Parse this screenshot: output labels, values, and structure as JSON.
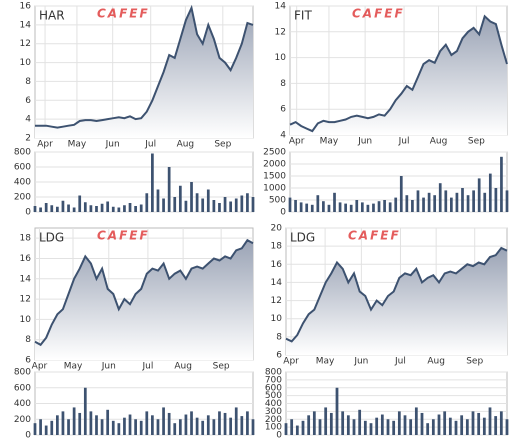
{
  "chart_data": [
    {
      "type": "area",
      "title": "HAR",
      "watermark": "CAFEF",
      "color": "#3d5270",
      "values": [
        3.3,
        3.3,
        3.3,
        3.2,
        3.1,
        3.2,
        3.3,
        3.4,
        3.8,
        3.9,
        3.9,
        3.8,
        3.9,
        4.0,
        4.1,
        4.2,
        4.1,
        4.3,
        4.0,
        4.1,
        4.8,
        6.0,
        7.5,
        9.0,
        10.8,
        10.5,
        12.5,
        14.5,
        15.8,
        13.0,
        12.0,
        14.0,
        12.5,
        10.5,
        10.0,
        9.2,
        10.5,
        12.0,
        14.2,
        14.0
      ],
      "xlim": [
        0,
        39
      ],
      "xticks": [
        {
          "value": 1.8,
          "label": "Apr"
        },
        {
          "value": 7.5,
          "label": "May"
        },
        {
          "value": 13.9,
          "label": "Jun"
        },
        {
          "value": 20.7,
          "label": "Jul"
        },
        {
          "value": 26.9,
          "label": "Aug"
        },
        {
          "value": 33.6,
          "label": "Sep"
        }
      ],
      "ylim": [
        2,
        16
      ],
      "yticks": [
        2,
        4,
        6,
        8,
        10,
        12,
        14,
        16
      ]
    },
    {
      "type": "bar",
      "color": "#3d5270",
      "values": [
        80,
        60,
        120,
        90,
        70,
        150,
        100,
        60,
        220,
        130,
        90,
        80,
        110,
        140,
        70,
        60,
        90,
        120,
        80,
        100,
        250,
        780,
        300,
        180,
        600,
        200,
        350,
        150,
        400,
        250,
        180,
        300,
        160,
        120,
        200,
        140,
        180,
        220,
        250,
        200
      ],
      "xlim": [
        0,
        39
      ],
      "ylim": [
        0,
        800
      ],
      "yticks": [
        0,
        200,
        400,
        600,
        800
      ]
    },
    {
      "type": "area",
      "title": "FIT",
      "watermark": "CAFEF",
      "color": "#3d5270",
      "values": [
        4.8,
        5.0,
        4.7,
        4.5,
        4.3,
        4.9,
        5.1,
        5.0,
        5.0,
        5.1,
        5.2,
        5.4,
        5.5,
        5.4,
        5.3,
        5.4,
        5.6,
        5.5,
        6.0,
        6.7,
        7.2,
        7.8,
        7.5,
        8.5,
        9.5,
        9.8,
        9.6,
        10.5,
        11.0,
        10.2,
        10.5,
        11.5,
        12.0,
        12.3,
        11.8,
        13.2,
        12.8,
        12.6,
        11.0,
        9.5
      ],
      "xlim": [
        0,
        39
      ],
      "xticks": [
        {
          "value": 1.2,
          "label": "Apr"
        },
        {
          "value": 7.0,
          "label": "May"
        },
        {
          "value": 13.5,
          "label": "Jun"
        },
        {
          "value": 20.5,
          "label": "Jul"
        },
        {
          "value": 26.7,
          "label": "Aug"
        },
        {
          "value": 33.5,
          "label": "Sep"
        }
      ],
      "ylim": [
        4,
        14
      ],
      "yticks": [
        4,
        6,
        8,
        10,
        12,
        14
      ]
    },
    {
      "type": "bar",
      "color": "#3d5270",
      "values": [
        600,
        500,
        400,
        350,
        300,
        700,
        450,
        300,
        800,
        400,
        350,
        300,
        500,
        400,
        300,
        350,
        450,
        500,
        400,
        600,
        1500,
        700,
        500,
        900,
        600,
        800,
        700,
        1200,
        900,
        600,
        800,
        1000,
        700,
        900,
        1400,
        800,
        1600,
        1000,
        2300,
        900
      ],
      "xlim": [
        0,
        39
      ],
      "ylim": [
        0,
        2500
      ],
      "yticks": [
        0,
        500,
        1000,
        1500,
        2000,
        2500
      ]
    },
    {
      "type": "area",
      "title": "LDG",
      "watermark": "CAFEF",
      "color": "#3d5270",
      "values": [
        7.8,
        7.5,
        8.2,
        9.5,
        10.5,
        11.0,
        12.5,
        14.0,
        15.0,
        16.2,
        15.5,
        14.0,
        15.0,
        13.0,
        12.5,
        11.0,
        12.0,
        11.5,
        12.5,
        13.0,
        14.5,
        15.0,
        14.8,
        15.5,
        14.0,
        14.5,
        14.8,
        14.0,
        15.0,
        15.2,
        15.0,
        15.5,
        16.0,
        15.8,
        16.2,
        16.0,
        16.8,
        17.0,
        17.8,
        17.5
      ],
      "xlim": [
        0,
        39
      ],
      "xticks": [
        {
          "value": 0.8,
          "label": "Apr"
        },
        {
          "value": 6.8,
          "label": "May"
        },
        {
          "value": 13.2,
          "label": "Jun"
        },
        {
          "value": 20.2,
          "label": "Jul"
        },
        {
          "value": 26.5,
          "label": "Aug"
        },
        {
          "value": 33.3,
          "label": "Sep"
        }
      ],
      "ylim": [
        6,
        19
      ],
      "yticks": [
        6,
        8,
        10,
        12,
        14,
        16,
        18
      ]
    },
    {
      "type": "bar",
      "color": "#3d5270",
      "values": [
        150,
        200,
        120,
        180,
        250,
        300,
        200,
        350,
        280,
        600,
        300,
        250,
        200,
        320,
        180,
        150,
        220,
        260,
        200,
        180,
        300,
        250,
        200,
        350,
        280,
        150,
        200,
        260,
        300,
        220,
        180,
        250,
        200,
        300,
        280,
        220,
        350,
        240,
        300,
        200
      ],
      "xlim": [
        0,
        39
      ],
      "ylim": [
        0,
        800
      ],
      "yticks": [
        0,
        200,
        400,
        600,
        800
      ]
    },
    {
      "type": "area",
      "title": "LDG",
      "watermark": "CAFEF",
      "color": "#3d5270",
      "values": [
        7.8,
        7.5,
        8.2,
        9.5,
        10.5,
        11.0,
        12.5,
        14.0,
        15.0,
        16.2,
        15.5,
        14.0,
        15.0,
        13.0,
        12.5,
        11.0,
        12.0,
        11.5,
        12.5,
        13.0,
        14.5,
        15.0,
        14.8,
        15.5,
        14.0,
        14.5,
        14.8,
        14.0,
        15.0,
        15.2,
        15.0,
        15.5,
        16.0,
        15.8,
        16.2,
        16.0,
        16.8,
        17.0,
        17.8,
        17.5
      ],
      "xlim": [
        0,
        39
      ],
      "xticks": [
        {
          "value": 0.9,
          "label": "Apr"
        },
        {
          "value": 6.9,
          "label": "May"
        },
        {
          "value": 13.3,
          "label": "Jun"
        },
        {
          "value": 20.2,
          "label": "Jul"
        },
        {
          "value": 26.5,
          "label": "Aug"
        },
        {
          "value": 33.3,
          "label": "Sep"
        }
      ],
      "ylim": [
        6,
        20
      ],
      "yticks": [
        6,
        8,
        10,
        12,
        14,
        16,
        18,
        20
      ]
    },
    {
      "type": "bar",
      "color": "#3d5270",
      "values": [
        150,
        200,
        120,
        180,
        250,
        300,
        200,
        350,
        280,
        600,
        300,
        250,
        200,
        320,
        180,
        150,
        220,
        260,
        200,
        180,
        300,
        250,
        200,
        350,
        280,
        150,
        200,
        260,
        300,
        220,
        180,
        250,
        200,
        300,
        280,
        220,
        350,
        240,
        300,
        200
      ],
      "xlim": [
        0,
        39
      ],
      "ylim": [
        0,
        800
      ],
      "yticks": [
        0,
        100,
        200,
        300,
        400,
        500,
        600,
        700,
        800
      ]
    }
  ]
}
